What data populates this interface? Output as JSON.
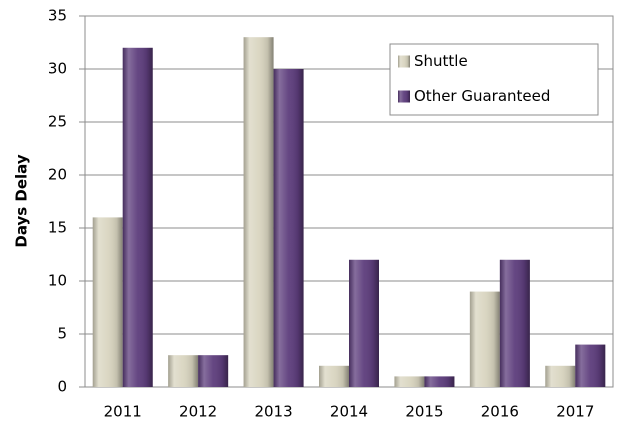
{
  "chart_data": {
    "type": "bar",
    "ylabel": "Days Delay",
    "categories": [
      "2011",
      "2012",
      "2013",
      "2014",
      "2015",
      "2016",
      "2017"
    ],
    "series": [
      {
        "name": "Shuttle",
        "color": "#d9d5c0",
        "values": [
          16,
          3,
          33,
          2,
          1,
          9,
          2
        ]
      },
      {
        "name": "Other Guaranteed",
        "color": "#5d3d7c",
        "values": [
          32,
          3,
          30,
          12,
          1,
          12,
          4
        ]
      }
    ],
    "ylim": [
      0,
      35
    ],
    "yticks": [
      0,
      5,
      10,
      15,
      20,
      25,
      30,
      35
    ],
    "grid": true,
    "legend": "upper right"
  }
}
